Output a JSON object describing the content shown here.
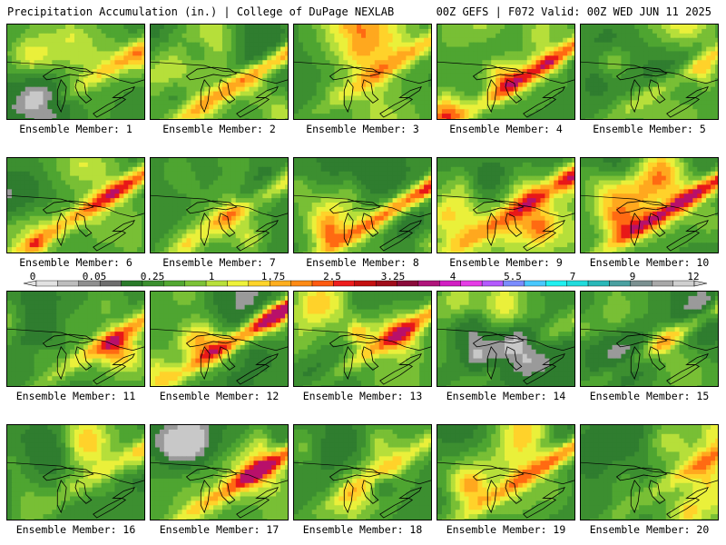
{
  "header": {
    "title_left": "Precipitation Accumulation (in.) | College of DuPage NEXLAB",
    "title_right": "00Z GEFS | F072 Valid: 00Z WED JUN 11 2025"
  },
  "colorbar": {
    "tick_labels": [
      "0",
      "0.05",
      "0.25",
      "1",
      "1.75",
      "2.5",
      "3.25",
      "4",
      "5.5",
      "7",
      "9",
      "12"
    ],
    "colors": [
      "#e2e2e2",
      "#bdbdbd",
      "#8f8f8f",
      "#6e6e6e",
      "#2a7a2a",
      "#3a8f2e",
      "#52a831",
      "#7cc236",
      "#b8e03a",
      "#eef23a",
      "#ffd42a",
      "#ffae1e",
      "#ff8a14",
      "#ff5a10",
      "#ee1c1c",
      "#c41010",
      "#a00c1a",
      "#8a0a3a",
      "#b0147a",
      "#d21ec2",
      "#e63ce6",
      "#b45aff",
      "#7a8cff",
      "#48c8ff",
      "#20f0f0",
      "#20dcdc",
      "#2ab8b8",
      "#4aa0a0",
      "#7a9090",
      "#a8a8a8",
      "#cfcfcf"
    ]
  },
  "panels": [
    {
      "label": "Ensemble Member: 1"
    },
    {
      "label": "Ensemble Member: 2"
    },
    {
      "label": "Ensemble Member: 3"
    },
    {
      "label": "Ensemble Member: 4"
    },
    {
      "label": "Ensemble Member: 5"
    },
    {
      "label": "Ensemble Member: 6"
    },
    {
      "label": "Ensemble Member: 7"
    },
    {
      "label": "Ensemble Member: 8"
    },
    {
      "label": "Ensemble Member: 9"
    },
    {
      "label": "Ensemble Member: 10"
    },
    {
      "label": "Ensemble Member: 11"
    },
    {
      "label": "Ensemble Member: 12"
    },
    {
      "label": "Ensemble Member: 13"
    },
    {
      "label": "Ensemble Member: 14"
    },
    {
      "label": "Ensemble Member: 15"
    },
    {
      "label": "Ensemble Member: 16"
    },
    {
      "label": "Ensemble Member: 17"
    },
    {
      "label": "Ensemble Member: 18"
    },
    {
      "label": "Ensemble Member: 19"
    },
    {
      "label": "Ensemble Member: 20"
    }
  ]
}
